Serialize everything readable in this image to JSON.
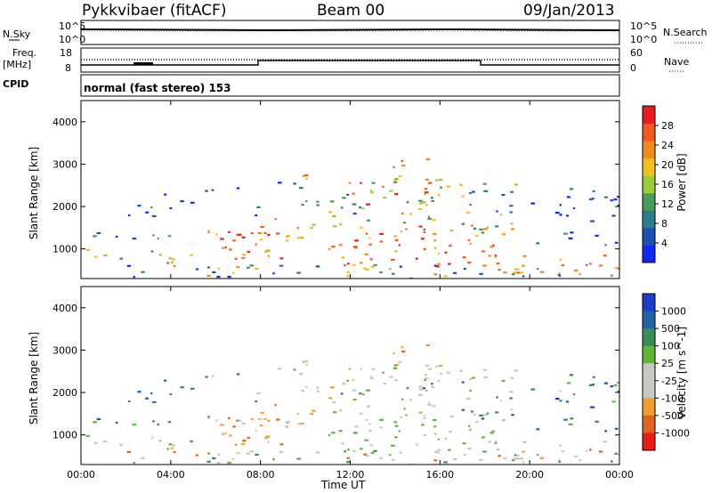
{
  "header": {
    "radar": "Pykkvibaer (fitACF)",
    "beam": "Beam 00",
    "date": "09/Jan/2013"
  },
  "top_panels": {
    "nsky_label": "N.Sky",
    "nsearch_label": "N.Search",
    "nsky_ticks": [
      "10^5",
      "10^0"
    ],
    "nsearch_ticks": [
      "10^5",
      "10^0"
    ],
    "freq_label_1": "Freq.",
    "freq_label_2": "[MHz]",
    "freq_ticks": [
      "18",
      "8"
    ],
    "nave_label": "Nave",
    "nave_ticks": [
      "60",
      "0"
    ],
    "cpid_label": "CPID",
    "cpid_text": "normal (fast stereo) 153"
  },
  "colors": {
    "power_scale": [
      "#1428f0",
      "#1e50b4",
      "#2e7d8c",
      "#4a9a5a",
      "#9ccc3a",
      "#f0c020",
      "#f08c1e",
      "#f05a1e",
      "#e61e1e"
    ],
    "velocity_scale": [
      "#1e3cc8",
      "#1e64a0",
      "#3c8c5a",
      "#64b43c",
      "#c8c8c0",
      "#c8c8c0",
      "#f0a030",
      "#e06420",
      "#e61e1e"
    ]
  },
  "chart_data": [
    {
      "type": "heatmap",
      "panel": "power",
      "ylabel": "Slant Range [km]",
      "ylim": [
        300,
        4500
      ],
      "yticks": [
        "1000",
        "2000",
        "3000",
        "4000"
      ],
      "xlim": [
        "00:00",
        "24:00"
      ],
      "colorbar_label": "Power [dB]",
      "colorbar_ticks": [
        "4",
        "8",
        "12",
        "16",
        "20",
        "24",
        "28"
      ],
      "colorbar_range": [
        0,
        32
      ]
    },
    {
      "type": "heatmap",
      "panel": "velocity",
      "ylabel": "Slant Range [km]",
      "ylim": [
        300,
        4500
      ],
      "yticks": [
        "1000",
        "2000",
        "3000",
        "4000"
      ],
      "xlabel": "Time UT",
      "xticks": [
        "00:00",
        "04:00",
        "08:00",
        "12:00",
        "16:00",
        "20:00",
        "00:00"
      ],
      "colorbar_label": "Velocity [m s^-1]",
      "colorbar_ticks": [
        "1000",
        "500",
        "100",
        "25",
        "-25",
        "-100",
        "-500",
        "-1000"
      ]
    }
  ]
}
